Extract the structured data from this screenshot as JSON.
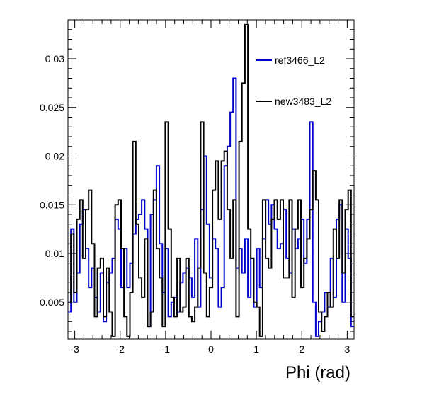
{
  "chart_data": {
    "type": "step-histogram",
    "xlabel": "Phi (rad)",
    "ylabel": "",
    "xlim": [
      -3.15,
      3.15
    ],
    "ylim": [
      0.0012,
      0.034
    ],
    "x_ticks": [
      {
        "value": -3,
        "label": "-3"
      },
      {
        "value": -2,
        "label": "-2"
      },
      {
        "value": -1,
        "label": "-1"
      },
      {
        "value": 0,
        "label": "0"
      },
      {
        "value": 1,
        "label": "1"
      },
      {
        "value": 2,
        "label": "2"
      },
      {
        "value": 3,
        "label": "3"
      }
    ],
    "y_ticks": [
      {
        "value": 0.005,
        "label": "0.005"
      },
      {
        "value": 0.01,
        "label": "0.01"
      },
      {
        "value": 0.015,
        "label": "0.015"
      },
      {
        "value": 0.02,
        "label": "0.02"
      },
      {
        "value": 0.025,
        "label": "0.025"
      },
      {
        "value": 0.03,
        "label": "0.03"
      }
    ],
    "grid": false,
    "legend_position": "top-right",
    "series": [
      {
        "name": "ref3466_L2",
        "color": "#0000cc",
        "values": [
          0.004,
          0.0125,
          0.005,
          0.008,
          0.013,
          0.0145,
          0.0105,
          0.0065,
          0.0085,
          0.0055,
          0.004,
          0.008,
          0.003,
          0.007,
          0.008,
          0.0095,
          0.0135,
          0.0125,
          0.0065,
          0.0105,
          0.0065,
          0.009,
          0.012,
          0.0135,
          0.014,
          0.0155,
          0.0125,
          0.0025,
          0.014,
          0.0155,
          0.019,
          0.011,
          0.006,
          0.0105,
          0.0035,
          0.005,
          0.0055,
          0.004,
          0.007,
          0.008,
          0.0085,
          0.0075,
          0.0055,
          0.0115,
          0.0045,
          0.0145,
          0.02,
          0.013,
          0.0075,
          0.0115,
          0.0105,
          0.0045,
          0.0065,
          0.019,
          0.021,
          0.0245,
          0.028,
          0.0085,
          0.0105,
          0.008,
          0.0115,
          0.0055,
          0.0095,
          0.0045,
          0.0105,
          0.0065,
          0.0115,
          0.0155,
          0.013,
          0.015,
          0.0125,
          0.0105,
          0.011,
          0.0145,
          0.0095,
          0.008,
          0.0125,
          0.0105,
          0.0115,
          0.0135,
          0.009,
          0.0135,
          0.0235,
          0.005,
          0.0015,
          0.003,
          0.004,
          0.006,
          0.0045,
          0.0095,
          0.0055,
          0.0135,
          0.015,
          0.005,
          0.0125,
          0.0095,
          0.0025
        ]
      },
      {
        "name": "new3483_L2",
        "color": "#000000",
        "values": [
          0.005,
          0.012,
          0.006,
          0.0135,
          0.0155,
          0.0095,
          0.0145,
          0.0165,
          0.011,
          0.0035,
          0.0085,
          0.0095,
          0.0035,
          0.0085,
          0.004,
          0.0015,
          0.015,
          0.0155,
          0.0105,
          0.0035,
          0.0015,
          0.006,
          0.0215,
          0.013,
          0.0075,
          0.0055,
          0.0115,
          0.0025,
          0.004,
          0.0165,
          0.0105,
          0.0075,
          0.0025,
          0.0235,
          0.0125,
          0.0055,
          0.0035,
          0.0095,
          0.004,
          0.0045,
          0.0095,
          0.0035,
          0.003,
          0.0045,
          0.0085,
          0.0235,
          0.008,
          0.0035,
          0.0065,
          0.0165,
          0.0195,
          0.0135,
          0.0195,
          0.0205,
          0.0145,
          0.0095,
          0.0155,
          0.0035,
          0.0215,
          0.0275,
          0.0335,
          0.0125,
          0.0095,
          0.005,
          0.0045,
          0.0015,
          0.0155,
          0.0095,
          0.0085,
          0.0135,
          0.0155,
          0.0135,
          0.0155,
          0.0075,
          0.0075,
          0.0155,
          0.0055,
          0.0125,
          0.0155,
          0.0065,
          0.0095,
          0.0115,
          0.0145,
          0.0185,
          0.0155,
          0.004,
          0.002,
          0.0035,
          0.006,
          0.0045,
          0.0125,
          0.0095,
          0.0155,
          0.008,
          0.0145,
          0.0165,
          0.0035
        ]
      }
    ]
  }
}
